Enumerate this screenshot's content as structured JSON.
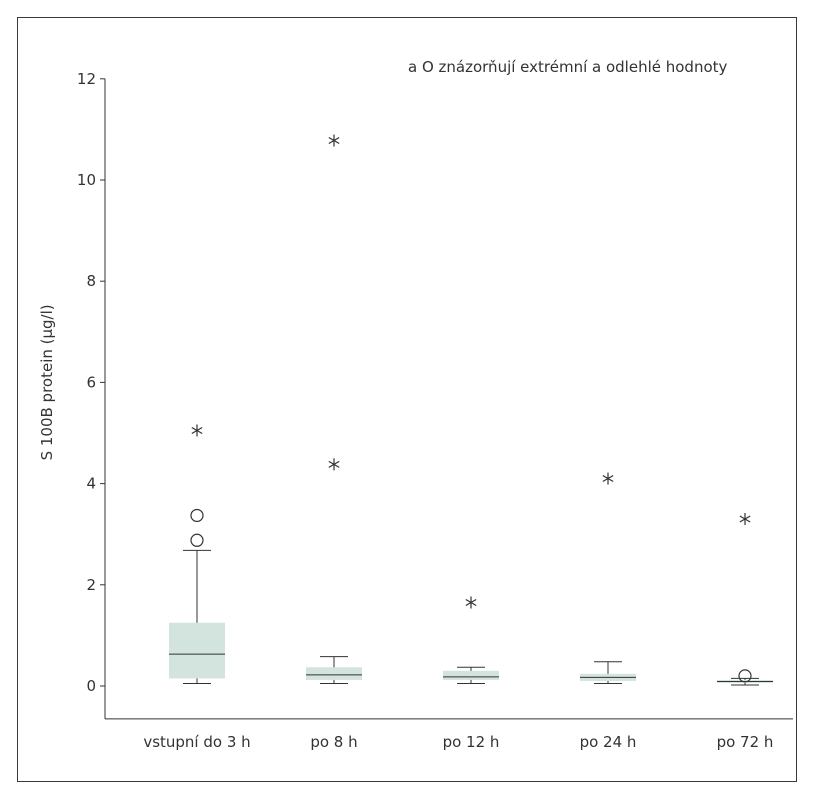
{
  "chart_data": {
    "type": "box",
    "title": "",
    "xlabel": "",
    "ylabel": "S 100B protein (µg/l)",
    "ylim": [
      -0.65,
      12
    ],
    "yticks": [
      0,
      2,
      4,
      6,
      8,
      10,
      12
    ],
    "grid": false,
    "legend": {
      "position": "top-right",
      "text": "a O znázorňují extrémní a odlehlé hodnoty"
    },
    "colors": {
      "box_fill": "#d3e3de",
      "line": "#333333"
    },
    "categories": [
      "vstupní do 3 h",
      "po 8 h",
      "po 12 h",
      "po 24 h",
      "po 72 h"
    ],
    "boxes": [
      {
        "category": "vstupní do 3 h",
        "whisker_low": 0.05,
        "q1": 0.15,
        "median": 0.63,
        "q3": 1.25,
        "whisker_high": 2.68,
        "outliers": [
          2.88,
          3.37
        ],
        "extremes": [
          5.05
        ]
      },
      {
        "category": "po 8 h",
        "whisker_low": 0.05,
        "q1": 0.12,
        "median": 0.22,
        "q3": 0.37,
        "whisker_high": 0.58,
        "outliers": [],
        "extremes": [
          4.38,
          10.78
        ]
      },
      {
        "category": "po 12 h",
        "whisker_low": 0.05,
        "q1": 0.12,
        "median": 0.18,
        "q3": 0.3,
        "whisker_high": 0.37,
        "outliers": [],
        "extremes": [
          1.65
        ]
      },
      {
        "category": "po 24 h",
        "whisker_low": 0.05,
        "q1": 0.1,
        "median": 0.17,
        "q3": 0.24,
        "whisker_high": 0.48,
        "outliers": [],
        "extremes": [
          4.1
        ]
      },
      {
        "category": "po 72 h",
        "whisker_low": 0.02,
        "q1": 0.06,
        "median": 0.09,
        "q3": 0.12,
        "whisker_high": 0.15,
        "outliers": [
          0.2
        ],
        "extremes": [
          3.3
        ]
      }
    ]
  }
}
